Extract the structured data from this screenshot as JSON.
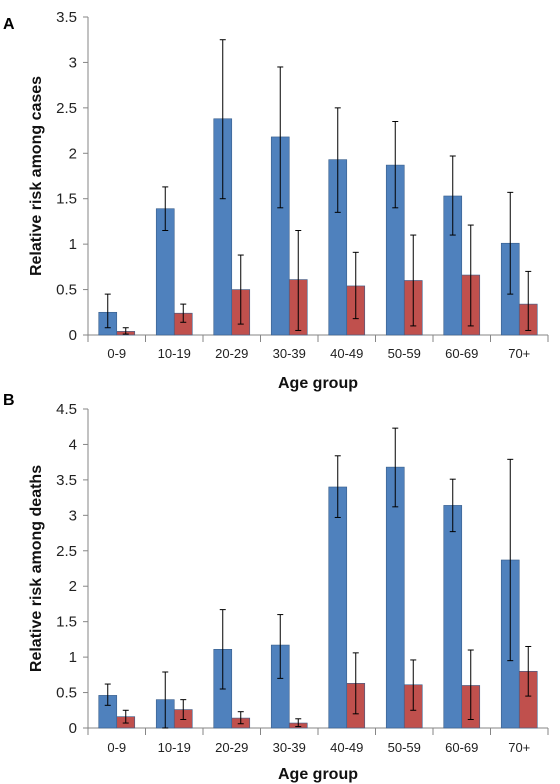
{
  "chart_data": [
    {
      "type": "bar",
      "panel_label": "A",
      "xlabel": "Age group",
      "ylabel": "Relative risk among cases",
      "ylim": [
        0,
        3.5
      ],
      "yticks": [
        "0",
        "0.5",
        "1",
        "1.5",
        "2",
        "2.5",
        "3",
        "3.5"
      ],
      "grid": false,
      "categories": [
        "0-9",
        "10-19",
        "20-29",
        "30-39",
        "40-49",
        "50-59",
        "60-69",
        "70+"
      ],
      "series": [
        {
          "color": "#4F81BD",
          "values": [
            0.25,
            1.39,
            2.38,
            2.18,
            1.93,
            1.87,
            1.53,
            1.01
          ],
          "err_low": [
            0.08,
            1.15,
            1.5,
            1.4,
            1.35,
            1.4,
            1.1,
            0.45
          ],
          "err_high": [
            0.45,
            1.63,
            3.25,
            2.95,
            2.5,
            2.35,
            1.97,
            1.57
          ]
        },
        {
          "color": "#C0504D",
          "values": [
            0.04,
            0.24,
            0.5,
            0.61,
            0.54,
            0.6,
            0.66,
            0.34
          ],
          "err_low": [
            0.01,
            0.14,
            0.12,
            0.05,
            0.18,
            0.1,
            0.1,
            0.05
          ],
          "err_high": [
            0.08,
            0.34,
            0.88,
            1.15,
            0.91,
            1.1,
            1.21,
            0.7
          ]
        }
      ]
    },
    {
      "type": "bar",
      "panel_label": "B",
      "xlabel": "Age group",
      "ylabel": "Relative risk among deaths",
      "ylim": [
        0,
        4.5
      ],
      "yticks": [
        "0",
        "0.5",
        "1",
        "1.5",
        "2",
        "2.5",
        "3",
        "3.5",
        "4",
        "4.5"
      ],
      "grid": false,
      "categories": [
        "0-9",
        "10-19",
        "20-29",
        "30-39",
        "40-49",
        "50-59",
        "60-69",
        "70+"
      ],
      "series": [
        {
          "color": "#4F81BD",
          "values": [
            0.46,
            0.4,
            1.11,
            1.17,
            3.4,
            3.68,
            3.14,
            2.37
          ],
          "err_low": [
            0.32,
            0.0,
            0.55,
            0.7,
            2.97,
            3.12,
            2.77,
            0.95
          ],
          "err_high": [
            0.62,
            0.79,
            1.67,
            1.6,
            3.84,
            4.23,
            3.51,
            3.79
          ]
        },
        {
          "color": "#C0504D",
          "values": [
            0.16,
            0.26,
            0.14,
            0.07,
            0.63,
            0.61,
            0.6,
            0.8
          ],
          "err_low": [
            0.07,
            0.12,
            0.06,
            0.02,
            0.2,
            0.25,
            0.12,
            0.45
          ],
          "err_high": [
            0.25,
            0.4,
            0.23,
            0.13,
            1.06,
            0.96,
            1.1,
            1.15
          ]
        }
      ]
    }
  ]
}
